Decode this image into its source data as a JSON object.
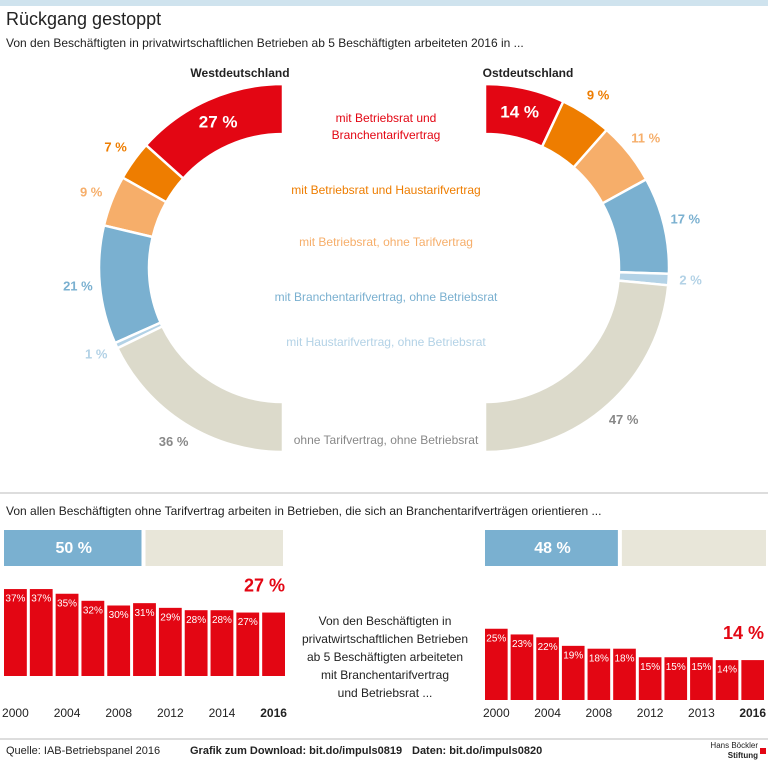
{
  "title": "Rückgang gestoppt",
  "subtitle": "Von den Beschäftigten in privatwirtschaftlichen Betrieben ab 5 Beschäftigten arbeiteten 2016 in ...",
  "chart_data": [
    {
      "type": "half-donut",
      "categories": [
        "mit Betriebsrat und Branchentarifvertrag",
        "mit Betriebsrat und Haustarifvertrag",
        "mit Betriebsrat, ohne Tarifvertrag",
        "mit Branchentarifvertrag, ohne Betriebsrat",
        "mit Haustarifvertrag, ohne Betriebsrat",
        "ohne Tarifvertrag, ohne Betriebsrat"
      ],
      "colors": [
        "#e30613",
        "#ee7d00",
        "#f6ae6a",
        "#7ab0d0",
        "#b3d2e6",
        "#dcdacb"
      ],
      "series": [
        {
          "name": "Westdeutschland",
          "values": [
            27,
            7,
            9,
            21,
            1,
            36
          ],
          "value_labels": [
            "27 %",
            "7 %",
            "9 %",
            "21 %",
            "1 %",
            "36 %"
          ]
        },
        {
          "name": "Ostdeutschland",
          "values": [
            14,
            9,
            11,
            17,
            2,
            47
          ],
          "value_labels": [
            "14 %",
            "9 %",
            "11 %",
            "17 %",
            "2 %",
            "47 %"
          ]
        }
      ]
    },
    {
      "type": "share-bar",
      "title": "Von allen Beschäftigten ohne Tarifvertrag arbeiten in Betrieben, die sich an Branchentarifverträgen orientieren ...",
      "color": "#7ab0d0",
      "rest_color": "#e8e6d9",
      "values": [
        50,
        48
      ],
      "value_labels": [
        "50 %",
        "48 %"
      ]
    },
    {
      "type": "bar",
      "color": "#e30613",
      "categories": [
        "2000",
        null,
        "2004",
        null,
        "2008",
        null,
        "2012",
        null,
        "2014",
        null,
        "2016"
      ],
      "values": [
        37,
        37,
        35,
        32,
        30,
        31,
        29,
        28,
        28,
        27,
        27
      ],
      "value_labels": [
        "37%",
        "37%",
        "35%",
        "32%",
        "30%",
        "31%",
        "29%",
        "28%",
        "28%",
        "27%",
        "27 %"
      ]
    },
    {
      "type": "bar",
      "color": "#e30613",
      "categories": [
        "2000",
        null,
        "2004",
        null,
        "2008",
        null,
        "2012",
        null,
        "2013",
        null,
        "2016"
      ],
      "values": [
        25,
        23,
        22,
        19,
        18,
        18,
        15,
        15,
        15,
        14,
        14
      ],
      "value_labels": [
        "25%",
        "23%",
        "22%",
        "19%",
        "18%",
        "18%",
        "15%",
        "15%",
        "15%",
        "14%",
        "14 %"
      ]
    }
  ],
  "note": [
    "Von den Beschäftigten in",
    "privatwirtschaftlichen Betrieben",
    "ab 5 Beschäftigten arbeiteten",
    "mit Branchentarifvertrag",
    "und Betriebsrat ..."
  ],
  "footer": {
    "source": "Quelle: IAB-Betriebspanel 2016",
    "download": "Grafik zum Download: bit.do/impuls0819",
    "data": "Daten: bit.do/impuls0820",
    "logo": [
      "Hans Böckler",
      "Stiftung"
    ]
  }
}
